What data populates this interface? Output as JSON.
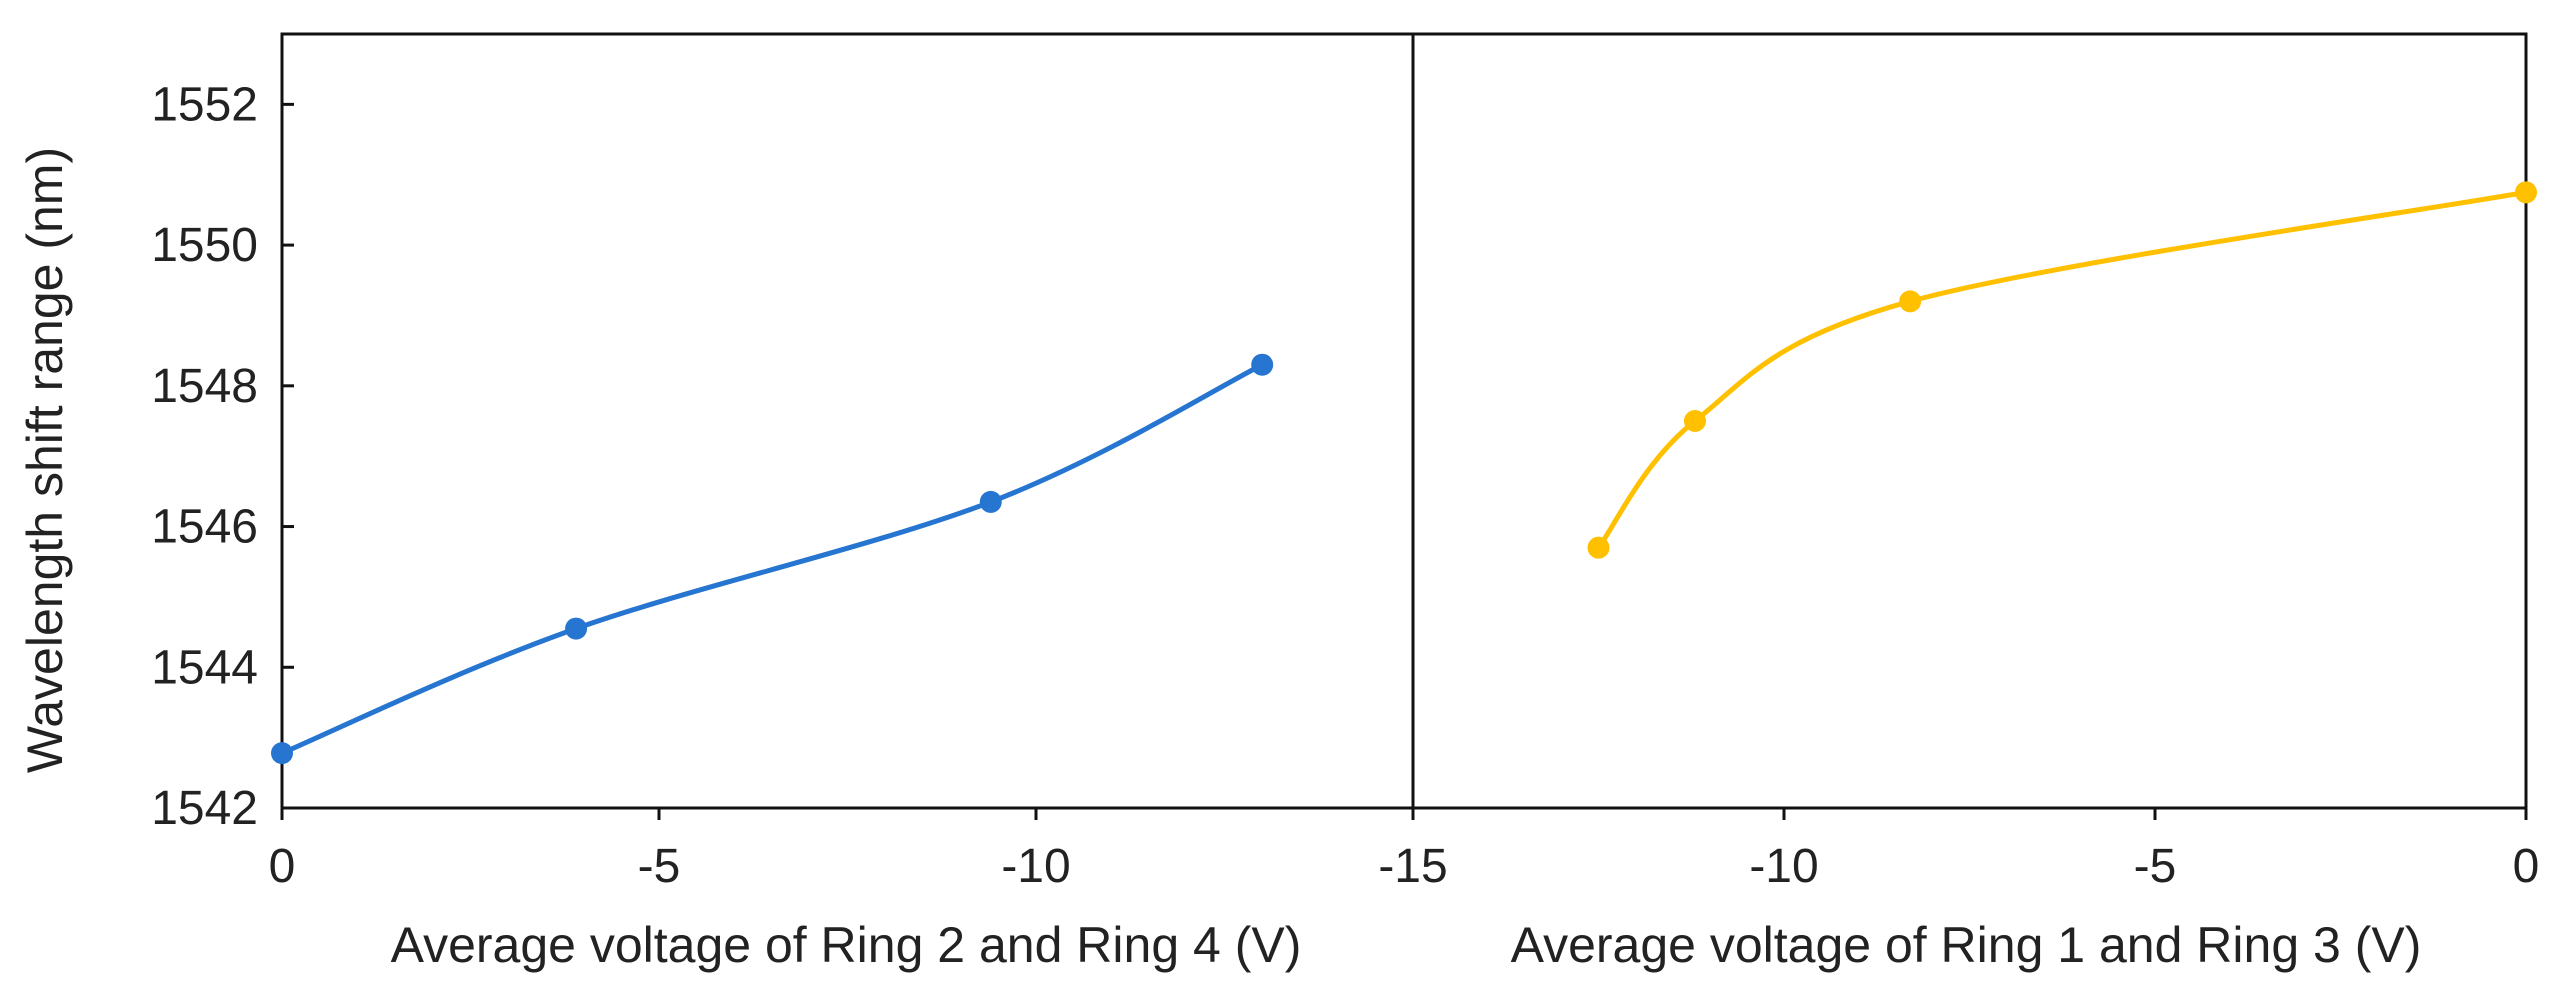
{
  "chart_data": {
    "type": "line",
    "ylabel": "Wavelength shift range (nm)",
    "ylim": [
      1542,
      1553
    ],
    "yticks": [
      "1542",
      "1544",
      "1546",
      "1548",
      "1550",
      "1552"
    ],
    "panels": [
      {
        "name": "left",
        "xlabel": "Average voltage of Ring 2 and Ring 4 (V)",
        "xlim": [
          0,
          -15
        ],
        "xticks": [
          "0",
          "-5",
          "-10",
          "-15"
        ],
        "series": [
          {
            "name": "Ring 2 and Ring 4",
            "color": "#2675d1",
            "x": [
              0,
              -3.9,
              -9.4,
              -13.0
            ],
            "y": [
              1542.78,
              1544.55,
              1546.35,
              1548.3
            ]
          }
        ]
      },
      {
        "name": "right",
        "xlabel": "Average voltage of Ring 1 and Ring 3 (V)",
        "xlim": [
          -15,
          0
        ],
        "xticks": [
          "-15",
          "-10",
          "-5",
          "0"
        ],
        "series": [
          {
            "name": "Ring 1 and Ring 3",
            "color": "#ffc000",
            "x": [
              -12.5,
              -11.2,
              -8.3,
              0
            ],
            "y": [
              1545.7,
              1547.5,
              1549.2,
              1550.75
            ]
          }
        ]
      }
    ]
  }
}
